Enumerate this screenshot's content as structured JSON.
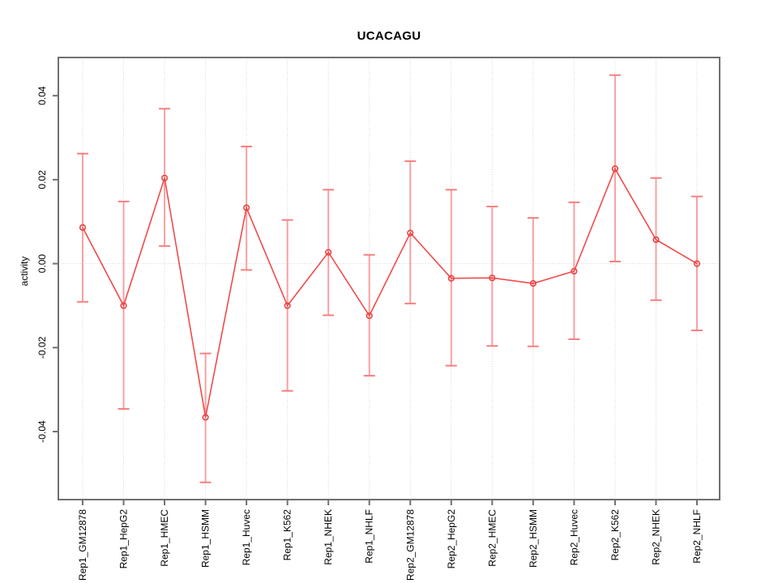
{
  "chart_data": {
    "type": "line",
    "title": "UCACAGU",
    "ylabel": "activity",
    "xlabel": "",
    "categories": [
      "Rep1_GM12878",
      "Rep1_HepG2",
      "Rep1_HMEC",
      "Rep1_HSMM",
      "Rep1_Huvec",
      "Rep1_K562",
      "Rep1_NHEK",
      "Rep1_NHLF",
      "Rep2_GM12878",
      "Rep2_HepG2",
      "Rep2_HMEC",
      "Rep2_HSMM",
      "Rep2_Huvec",
      "Rep2_K562",
      "Rep2_NHEK",
      "Rep2_NHLF"
    ],
    "series": [
      {
        "name": "activity",
        "values": [
          0.0086,
          -0.01,
          0.0204,
          -0.0366,
          0.0133,
          -0.01,
          0.0027,
          -0.0124,
          0.0073,
          -0.0035,
          -0.0034,
          -0.0047,
          -0.0018,
          0.0226,
          0.0057,
          0.0
        ],
        "lower": [
          -0.0091,
          -0.0346,
          0.0042,
          -0.0521,
          -0.0015,
          -0.0303,
          -0.0123,
          -0.0267,
          -0.0095,
          -0.0243,
          -0.0196,
          -0.0197,
          -0.018,
          0.0005,
          -0.0087,
          -0.0159
        ],
        "upper": [
          0.0262,
          0.0148,
          0.0369,
          -0.0214,
          0.0279,
          0.0104,
          0.0176,
          0.0021,
          0.0244,
          0.0176,
          0.0136,
          0.0109,
          0.0146,
          0.0449,
          0.0204,
          0.016
        ]
      }
    ],
    "yticks": [
      -0.04,
      -0.02,
      0.0,
      0.02,
      0.04
    ],
    "ylim": [
      -0.0562,
      0.0491
    ],
    "grid": {
      "vertical_at_categories": true,
      "horizontal_at_zero": true,
      "style": "dotted"
    },
    "legend": "none",
    "marker": "open-circle",
    "colors": {
      "line": "#f04b4b",
      "marker": "#e84444",
      "error_bar": "#f9a1a1",
      "error_cap": "#f87f7f",
      "grid": "#d8d8d8",
      "axis": "#707070",
      "text": "#000000",
      "background": "#ffffff"
    }
  }
}
